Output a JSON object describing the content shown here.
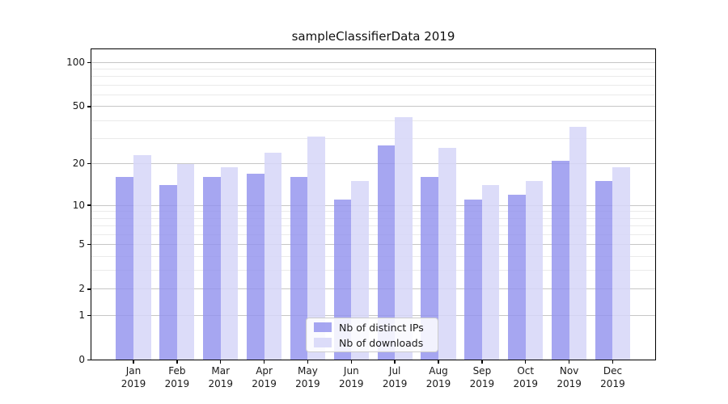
{
  "title": "sampleClassifierData 2019",
  "chart_data": {
    "type": "bar",
    "title": "sampleClassifierData 2019",
    "categories": [
      "Jan 2019",
      "Feb 2019",
      "Mar 2019",
      "Apr 2019",
      "May 2019",
      "Jun 2019",
      "Jul 2019",
      "Aug 2019",
      "Sep 2019",
      "Oct 2019",
      "Nov 2019",
      "Dec 2019"
    ],
    "months": [
      "Jan",
      "Feb",
      "Mar",
      "Apr",
      "May",
      "Jun",
      "Jul",
      "Aug",
      "Sep",
      "Oct",
      "Nov",
      "Dec"
    ],
    "year": "2019",
    "series": [
      {
        "name": "Nb of distinct IPs",
        "color": "rgba(146,146,238,0.82)",
        "values": [
          16,
          14,
          16,
          17,
          16,
          11,
          27,
          16,
          11,
          12,
          21,
          15
        ]
      },
      {
        "name": "Nb of downloads",
        "color": "rgba(214,214,248,0.85)",
        "values": [
          23,
          20,
          19,
          24,
          31,
          15,
          42,
          26,
          14,
          15,
          36,
          19
        ]
      }
    ],
    "yscale": "log10(value+1)",
    "ylim": [
      0,
      125
    ],
    "y_major_ticks": [
      100,
      50,
      20,
      10,
      5,
      2,
      1,
      0
    ],
    "y_minor_ticks": [
      90,
      80,
      70,
      60,
      40,
      30,
      9,
      8,
      7,
      6,
      4,
      3
    ],
    "grid": true,
    "legend_position": "lower center",
    "colors": {
      "major_grid": "#c6c6c6",
      "minor_grid": "#eaeaea",
      "axis": "#000000",
      "text": "#1a1a1a"
    }
  }
}
